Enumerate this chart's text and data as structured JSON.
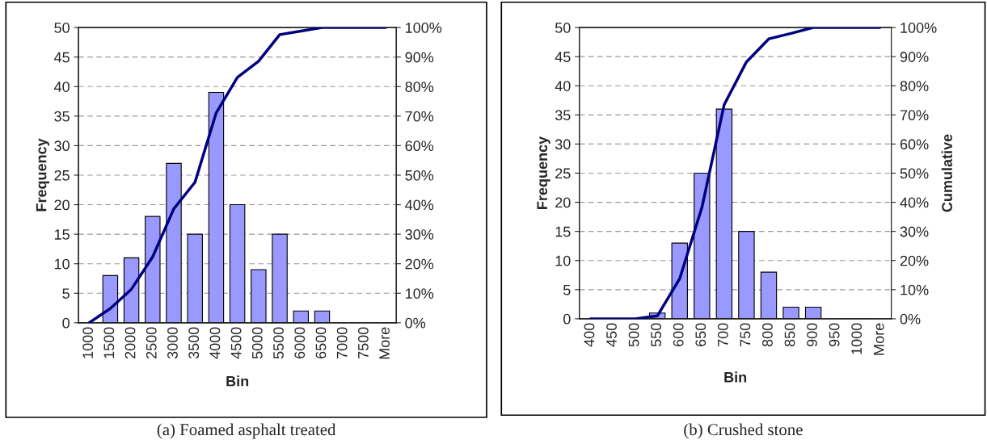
{
  "chart_data": [
    {
      "type": "bar",
      "title": "(a) Foamed asphalt treated",
      "xlabel": "Bin",
      "ylabel": "Frequency",
      "categories": [
        "1000",
        "1500",
        "2000",
        "2500",
        "3000",
        "3500",
        "4000",
        "4500",
        "5000",
        "5500",
        "6000",
        "6500",
        "7000",
        "7500",
        "More"
      ],
      "series": [
        {
          "color": "#9999ff",
          "values": [
            0,
            8,
            11,
            18,
            27,
            15,
            39,
            20,
            9,
            15,
            2,
            2,
            0,
            0,
            0
          ]
        },
        {
          "type": "line",
          "axis": "y2",
          "color": "#000080",
          "values": [
            0,
            4.8,
            11.4,
            22.3,
            38.6,
            47.6,
            71.1,
            83.1,
            88.6,
            97.6,
            98.8,
            100,
            100,
            100,
            100
          ]
        }
      ],
      "ylim": [
        0,
        50
      ],
      "yticks": [
        0,
        5,
        10,
        15,
        20,
        25,
        30,
        35,
        40,
        45,
        50
      ],
      "y2lim": [
        0,
        100
      ],
      "y2ticks": [
        {
          "value": 0,
          "label": "0%"
        },
        {
          "value": 10,
          "label": "10%"
        },
        {
          "value": 20,
          "label": "20%"
        },
        {
          "value": 30,
          "label": "30%"
        },
        {
          "value": 40,
          "label": "40%"
        },
        {
          "value": 50,
          "label": "50%"
        },
        {
          "value": 60,
          "label": "60%"
        },
        {
          "value": 70,
          "label": "70%"
        },
        {
          "value": 80,
          "label": "80%"
        },
        {
          "value": 90,
          "label": "90%"
        },
        {
          "value": 100,
          "label": "100%"
        }
      ],
      "grid": "y",
      "line_style": "solid",
      "marker": "none"
    },
    {
      "type": "bar",
      "title": "(b) Crushed stone",
      "xlabel": "Bin",
      "ylabel": "Frequency",
      "y2label": "Cumulative",
      "categories": [
        "400",
        "450",
        "500",
        "550",
        "600",
        "650",
        "700",
        "750",
        "800",
        "850",
        "900",
        "950",
        "1000",
        "More"
      ],
      "series": [
        {
          "color": "#9999ff",
          "values": [
            0,
            0,
            0,
            1,
            13,
            25,
            36,
            15,
            8,
            2,
            2,
            0,
            0,
            0
          ]
        },
        {
          "type": "line",
          "axis": "y2",
          "color": "#000080",
          "values": [
            0,
            0,
            0,
            1.0,
            13.7,
            38.2,
            73.5,
            88.2,
            96.1,
            98.0,
            100,
            100,
            100,
            100
          ]
        }
      ],
      "ylim": [
        0,
        50
      ],
      "yticks": [
        0,
        5,
        10,
        15,
        20,
        25,
        30,
        35,
        40,
        45,
        50
      ],
      "y2lim": [
        0,
        100
      ],
      "y2ticks": [
        {
          "value": 0,
          "label": "0%"
        },
        {
          "value": 10,
          "label": "10%"
        },
        {
          "value": 20,
          "label": "20%"
        },
        {
          "value": 30,
          "label": "30%"
        },
        {
          "value": 40,
          "label": "40%"
        },
        {
          "value": 50,
          "label": "50%"
        },
        {
          "value": 60,
          "label": "60%"
        },
        {
          "value": 70,
          "label": "70%"
        },
        {
          "value": 80,
          "label": "80%"
        },
        {
          "value": 90,
          "label": "90%"
        },
        {
          "value": 100,
          "label": "100%"
        }
      ],
      "grid": "y",
      "line_style": "solid",
      "marker": "none"
    }
  ]
}
